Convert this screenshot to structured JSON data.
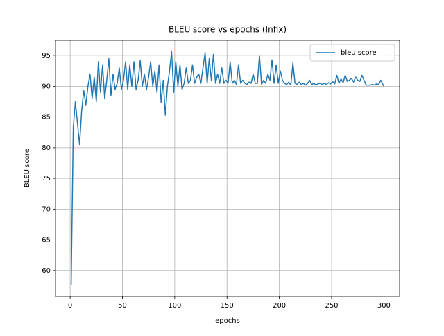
{
  "chart_data": {
    "type": "line",
    "title": "BLEU score vs epochs (Infix)",
    "x_label": "epochs",
    "y_label": "BLEU score",
    "x": [
      1,
      3,
      5,
      7,
      9,
      11,
      13,
      15,
      17,
      19,
      21,
      23,
      25,
      27,
      29,
      31,
      33,
      35,
      37,
      39,
      41,
      43,
      45,
      47,
      49,
      51,
      53,
      55,
      57,
      59,
      61,
      63,
      65,
      67,
      69,
      71,
      73,
      75,
      77,
      79,
      81,
      83,
      85,
      87,
      89,
      91,
      93,
      95,
      97,
      99,
      101,
      103,
      105,
      107,
      109,
      111,
      113,
      115,
      117,
      119,
      121,
      123,
      125,
      127,
      129,
      131,
      133,
      135,
      137,
      139,
      141,
      143,
      145,
      147,
      149,
      151,
      153,
      155,
      157,
      159,
      161,
      163,
      165,
      167,
      169,
      171,
      173,
      175,
      177,
      179,
      181,
      183,
      185,
      187,
      189,
      191,
      193,
      195,
      197,
      199,
      201,
      203,
      205,
      207,
      209,
      211,
      213,
      215,
      217,
      219,
      221,
      223,
      225,
      227,
      229,
      231,
      233,
      235,
      237,
      239,
      241,
      243,
      245,
      247,
      249,
      251,
      253,
      255,
      257,
      259,
      261,
      263,
      265,
      267,
      269,
      271,
      273,
      275,
      277,
      279,
      281,
      283,
      285,
      287,
      289,
      291,
      293,
      295,
      297,
      299,
      300
    ],
    "series": [
      {
        "name": "bleu score",
        "color": "#1f77b4",
        "values": [
          57.7,
          83.3,
          87.5,
          84,
          80.5,
          86,
          89.3,
          87,
          90,
          92,
          88,
          91.5,
          87.5,
          94,
          89,
          93.5,
          88,
          91,
          94.5,
          88.5,
          92,
          89.5,
          90.5,
          93,
          89.5,
          91,
          94,
          89.5,
          93.5,
          90,
          94,
          89.5,
          91,
          94.2,
          90,
          92,
          89.5,
          91.5,
          94,
          90,
          92.5,
          89,
          93.5,
          87.3,
          91,
          85.3,
          90,
          92.5,
          95.7,
          89,
          94,
          90,
          93.5,
          89.5,
          90.5,
          93,
          90.5,
          91,
          93.5,
          90.5,
          91.5,
          92,
          90.5,
          93,
          95.5,
          90.5,
          94.5,
          91,
          95.2,
          90.5,
          92,
          90.5,
          93,
          90.5,
          91,
          90.5,
          94,
          90.5,
          91,
          90.3,
          93.5,
          90.5,
          91,
          90.5,
          90.3,
          90.7,
          90.5,
          92,
          90.5,
          90.5,
          95,
          90.3,
          91,
          90.5,
          92,
          91,
          94.3,
          90.5,
          93.5,
          90.5,
          92.5,
          91,
          90.5,
          90.3,
          90.7,
          90.2,
          93.8,
          90.5,
          90.3,
          90.7,
          90.3,
          90.5,
          90.2,
          90.5,
          91,
          90.3,
          90.5,
          90.2,
          90.4,
          90.5,
          90.3,
          90.5,
          90.3,
          90.6,
          90.4,
          90.8,
          90.4,
          91.8,
          90.5,
          91.2,
          90.6,
          91.8,
          90.8,
          91,
          91.3,
          90.7,
          91.5,
          91,
          90.8,
          91.8,
          91,
          90.2,
          90.2,
          90.2,
          90.3,
          90.2,
          90.4,
          90.3,
          91,
          90.3,
          90
        ]
      }
    ],
    "xlim": [
      -14,
      315
    ],
    "ylim": [
      55.8,
      97.5
    ],
    "xticks": [
      0,
      50,
      100,
      150,
      200,
      250,
      300
    ],
    "yticks": [
      60,
      65,
      70,
      75,
      80,
      85,
      90,
      95
    ],
    "grid": true,
    "legend": "upper right"
  }
}
